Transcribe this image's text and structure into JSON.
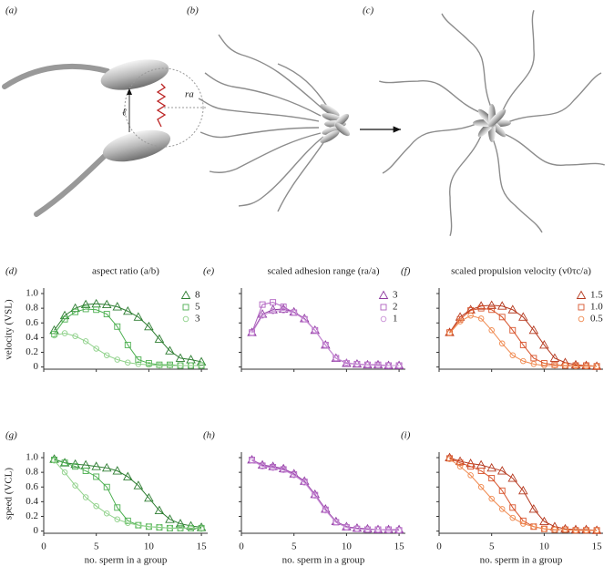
{
  "illustration": {
    "panels": [
      "(a)",
      "(b)",
      "(c)"
    ],
    "radius_label": "ra",
    "length_label": "ℓ"
  },
  "chart_data": [
    {
      "type": "line",
      "panel": "(d)",
      "title": "aspect ratio (a/b)",
      "ylabel": "velocity (VSL)",
      "x": [
        1,
        2,
        3,
        4,
        5,
        6,
        7,
        8,
        9,
        10,
        11,
        12,
        13,
        14,
        15
      ],
      "xlim": [
        0,
        15.6
      ],
      "xticks": [
        0,
        5,
        10,
        15
      ],
      "xtick_labels": false,
      "ylim": [
        -0.03,
        1.05
      ],
      "yticks": [
        0,
        0.2,
        0.4,
        0.6,
        0.8,
        {
          "value": 1,
          "label": "1.0"
        }
      ],
      "ytick_labels": true,
      "series": [
        {
          "name": "8",
          "color": "#2e7d32",
          "marker": "triangle",
          "values": [
            0.5,
            0.7,
            0.8,
            0.85,
            0.86,
            0.85,
            0.82,
            0.76,
            0.68,
            0.55,
            0.38,
            0.22,
            0.12,
            0.1,
            0.07
          ]
        },
        {
          "name": "5",
          "color": "#4caf50",
          "marker": "square",
          "values": [
            0.45,
            0.65,
            0.75,
            0.79,
            0.78,
            0.72,
            0.55,
            0.3,
            0.1,
            0.05,
            0.03,
            0.03,
            0.02,
            0.02,
            0.02
          ]
        },
        {
          "name": "3",
          "color": "#8fd18a",
          "marker": "circle",
          "values": [
            0.43,
            0.46,
            0.42,
            0.35,
            0.25,
            0.16,
            0.1,
            0.06,
            0.04,
            0.03,
            0.02,
            0.02,
            0.02,
            0.02,
            0.02
          ]
        }
      ]
    },
    {
      "type": "line",
      "panel": "(e)",
      "title": "scaled adhesion range (ra/a)",
      "x": [
        1,
        2,
        3,
        4,
        5,
        6,
        7,
        8,
        9,
        10,
        11,
        12,
        13,
        14,
        15
      ],
      "xlim": [
        0,
        15.6
      ],
      "xticks": [
        0,
        5,
        10,
        15
      ],
      "xtick_labels": false,
      "ylim": [
        -0.03,
        1.05
      ],
      "yticks": [
        0,
        0.2,
        0.4,
        0.6,
        0.8,
        1
      ],
      "ytick_labels": false,
      "series": [
        {
          "name": "3",
          "color": "#8e3aa0",
          "marker": "triangle",
          "values": [
            0.47,
            0.72,
            0.78,
            0.79,
            0.75,
            0.66,
            0.5,
            0.3,
            0.12,
            0.05,
            0.04,
            0.03,
            0.03,
            0.02,
            0.02
          ]
        },
        {
          "name": "2",
          "color": "#b060c0",
          "marker": "square",
          "values": [
            0.47,
            0.85,
            0.88,
            0.82,
            0.74,
            0.65,
            0.5,
            0.3,
            0.12,
            0.05,
            0.04,
            0.03,
            0.03,
            0.02,
            0.02
          ]
        },
        {
          "name": "1",
          "color": "#c990d6",
          "marker": "circle",
          "values": [
            0.46,
            0.7,
            0.76,
            0.77,
            0.74,
            0.65,
            0.5,
            0.3,
            0.12,
            0.06,
            0.04,
            0.03,
            0.02,
            0.02,
            0.02
          ]
        }
      ]
    },
    {
      "type": "line",
      "panel": "(f)",
      "title": "scaled propulsion velocity (v0τc/a)",
      "x": [
        1,
        2,
        3,
        4,
        5,
        6,
        7,
        8,
        9,
        10,
        11,
        12,
        13,
        14,
        15
      ],
      "xlim": [
        0,
        15.6
      ],
      "xticks": [
        0,
        5,
        10,
        15
      ],
      "xtick_labels": false,
      "ylim": [
        -0.03,
        1.05
      ],
      "yticks": [
        0,
        0.2,
        0.4,
        0.6,
        0.8,
        1
      ],
      "ytick_labels": false,
      "series": [
        {
          "name": "1.5",
          "color": "#b5391f",
          "marker": "triangle",
          "values": [
            0.47,
            0.68,
            0.78,
            0.83,
            0.84,
            0.83,
            0.78,
            0.68,
            0.5,
            0.3,
            0.12,
            0.06,
            0.03,
            0.02,
            0.01
          ]
        },
        {
          "name": "1.0",
          "color": "#d8542c",
          "marker": "square",
          "values": [
            0.47,
            0.65,
            0.77,
            0.8,
            0.78,
            0.68,
            0.5,
            0.3,
            0.12,
            0.05,
            0.03,
            0.02,
            0.02,
            0.02,
            0.01
          ]
        },
        {
          "name": "0.5",
          "color": "#f08a50",
          "marker": "circle",
          "values": [
            0.46,
            0.62,
            0.7,
            0.66,
            0.5,
            0.32,
            0.16,
            0.08,
            0.04,
            0.02,
            0.02,
            0.02,
            0.01,
            0.01,
            0.01
          ]
        }
      ]
    },
    {
      "type": "line",
      "panel": "(g)",
      "ylabel": "speed (VCL)",
      "xlabel": "no. sperm in a group",
      "x": [
        1,
        2,
        3,
        4,
        5,
        6,
        7,
        8,
        9,
        10,
        11,
        12,
        13,
        14,
        15
      ],
      "xlim": [
        0,
        15.6
      ],
      "xticks": [
        0,
        5,
        10,
        15
      ],
      "xtick_labels": true,
      "ylim": [
        -0.03,
        1.05
      ],
      "yticks": [
        0,
        0.2,
        0.4,
        0.6,
        0.8,
        {
          "value": 1,
          "label": "1.0"
        }
      ],
      "ytick_labels": true,
      "series": [
        {
          "color": "#2e7d32",
          "marker": "triangle",
          "values": [
            0.98,
            0.93,
            0.91,
            0.9,
            0.88,
            0.86,
            0.82,
            0.74,
            0.62,
            0.45,
            0.28,
            0.16,
            0.1,
            0.07,
            0.05
          ]
        },
        {
          "color": "#4caf50",
          "marker": "square",
          "values": [
            0.97,
            0.93,
            0.88,
            0.82,
            0.74,
            0.6,
            0.32,
            0.14,
            0.08,
            0.06,
            0.05,
            0.04,
            0.04,
            0.04,
            0.04
          ]
        },
        {
          "color": "#8fd18a",
          "marker": "circle",
          "values": [
            0.96,
            0.8,
            0.62,
            0.46,
            0.34,
            0.24,
            0.16,
            0.11,
            0.08,
            0.06,
            0.05,
            0.04,
            0.04,
            0.04,
            0.03
          ]
        }
      ]
    },
    {
      "type": "line",
      "panel": "(h)",
      "xlabel": "no. sperm in a group",
      "x": [
        1,
        2,
        3,
        4,
        5,
        6,
        7,
        8,
        9,
        10,
        11,
        12,
        13,
        14,
        15
      ],
      "xlim": [
        0,
        15.6
      ],
      "xticks": [
        0,
        5,
        10,
        15
      ],
      "xtick_labels": true,
      "ylim": [
        -0.03,
        1.05
      ],
      "yticks": [
        0,
        0.2,
        0.4,
        0.6,
        0.8,
        1
      ],
      "ytick_labels": false,
      "series": [
        {
          "color": "#8e3aa0",
          "marker": "triangle",
          "values": [
            0.97,
            0.9,
            0.88,
            0.85,
            0.78,
            0.68,
            0.5,
            0.3,
            0.13,
            0.06,
            0.04,
            0.03,
            0.02,
            0.02,
            0.02
          ]
        },
        {
          "color": "#b060c0",
          "marker": "square",
          "values": [
            0.97,
            0.89,
            0.87,
            0.84,
            0.77,
            0.67,
            0.49,
            0.29,
            0.12,
            0.05,
            0.03,
            0.02,
            0.02,
            0.02,
            0.01
          ]
        },
        {
          "color": "#c990d6",
          "marker": "circle",
          "values": [
            0.96,
            0.88,
            0.86,
            0.83,
            0.76,
            0.66,
            0.48,
            0.28,
            0.12,
            0.05,
            0.03,
            0.02,
            0.02,
            0.01,
            0.01
          ]
        }
      ]
    },
    {
      "type": "line",
      "panel": "(i)",
      "xlabel": "no. sperm in a group",
      "x": [
        1,
        2,
        3,
        4,
        5,
        6,
        7,
        8,
        9,
        10,
        11,
        12,
        13,
        14,
        15
      ],
      "xlim": [
        0,
        15.6
      ],
      "xticks": [
        0,
        5,
        10,
        15
      ],
      "xtick_labels": true,
      "ylim": [
        -0.03,
        1.05
      ],
      "yticks": [
        0,
        0.2,
        0.4,
        0.6,
        0.8,
        1
      ],
      "ytick_labels": false,
      "series": [
        {
          "color": "#b5391f",
          "marker": "triangle",
          "values": [
            1,
            0.95,
            0.92,
            0.9,
            0.86,
            0.82,
            0.72,
            0.55,
            0.3,
            0.13,
            0.06,
            0.03,
            0.02,
            0.02,
            0.01
          ]
        },
        {
          "color": "#d8542c",
          "marker": "square",
          "values": [
            0.99,
            0.93,
            0.88,
            0.82,
            0.72,
            0.55,
            0.32,
            0.14,
            0.06,
            0.03,
            0.02,
            0.02,
            0.01,
            0.01,
            0.01
          ]
        },
        {
          "color": "#f08a50",
          "marker": "circle",
          "values": [
            0.98,
            0.88,
            0.76,
            0.6,
            0.44,
            0.3,
            0.18,
            0.1,
            0.06,
            0.03,
            0.02,
            0.02,
            0.01,
            0.01,
            0.01
          ]
        }
      ]
    }
  ]
}
